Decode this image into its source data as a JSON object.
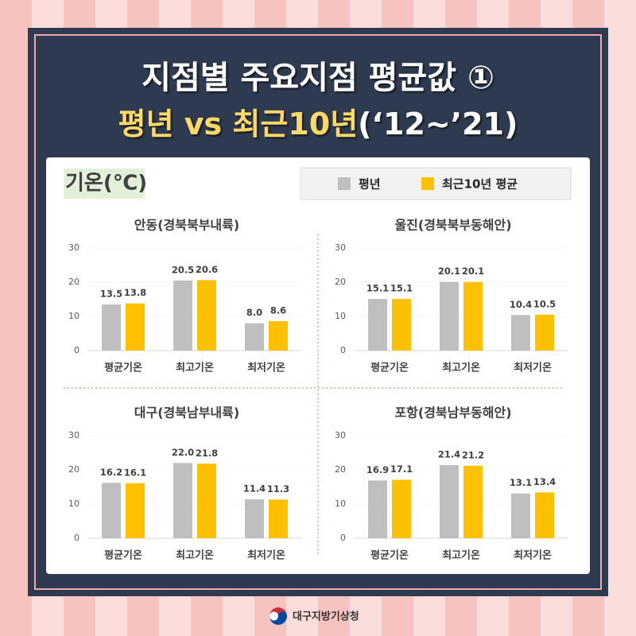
{
  "header": {
    "title": "지점별 주요지점 평균값 ①",
    "subtitle": "평년 vs 최근10년",
    "period": "(‘12~’21)"
  },
  "section_label": "기온(℃)",
  "legend": [
    {
      "name": "평년",
      "color": "#bfbfbf"
    },
    {
      "name": "최근10년 평균",
      "color": "#ffc000"
    }
  ],
  "footer": "대구지방기상청",
  "chart_data": [
    {
      "type": "bar",
      "title": "안동(경북북부내륙)",
      "categories": [
        "평균기온",
        "최고기온",
        "최저기온"
      ],
      "series": [
        {
          "values": [
            13.5,
            20.5,
            8.0
          ],
          "value_labels": [
            "13.5",
            "20.5",
            "8.0"
          ]
        },
        {
          "values": [
            13.8,
            20.6,
            8.6
          ],
          "value_labels": [
            "13.8",
            "20.6",
            "8.6"
          ]
        }
      ],
      "ylim": [
        0,
        30
      ],
      "yticks": [
        0,
        10,
        20,
        30
      ]
    },
    {
      "type": "bar",
      "title": "울진(경북북부동해안)",
      "categories": [
        "평균기온",
        "최고기온",
        "최저기온"
      ],
      "series": [
        {
          "values": [
            15.1,
            20.1,
            10.4
          ],
          "value_labels": [
            "15.1",
            "20.1",
            "10.4"
          ]
        },
        {
          "values": [
            15.1,
            20.1,
            10.5
          ],
          "value_labels": [
            "15.1",
            "20.1",
            "10.5"
          ]
        }
      ],
      "ylim": [
        0,
        30
      ],
      "yticks": [
        0,
        10,
        20,
        30
      ]
    },
    {
      "type": "bar",
      "title": "대구(경북남부내륙)",
      "categories": [
        "평균기온",
        "최고기온",
        "최저기온"
      ],
      "series": [
        {
          "values": [
            16.2,
            22.0,
            11.4
          ],
          "value_labels": [
            "16.2",
            "22.0",
            "11.4"
          ]
        },
        {
          "values": [
            16.1,
            21.8,
            11.3
          ],
          "value_labels": [
            "16.1",
            "21.8",
            "11.3"
          ]
        }
      ],
      "ylim": [
        0,
        30
      ],
      "yticks": [
        0,
        10,
        20,
        30
      ]
    },
    {
      "type": "bar",
      "title": "포항(경북남부동해안)",
      "categories": [
        "평균기온",
        "최고기온",
        "최저기온"
      ],
      "series": [
        {
          "values": [
            16.9,
            21.4,
            13.1
          ],
          "value_labels": [
            "16.9",
            "21.4",
            "13.1"
          ]
        },
        {
          "values": [
            17.1,
            21.2,
            13.4
          ],
          "value_labels": [
            "17.1",
            "21.2",
            "13.4"
          ]
        }
      ],
      "ylim": [
        0,
        30
      ],
      "yticks": [
        0,
        10,
        20,
        30
      ]
    }
  ]
}
